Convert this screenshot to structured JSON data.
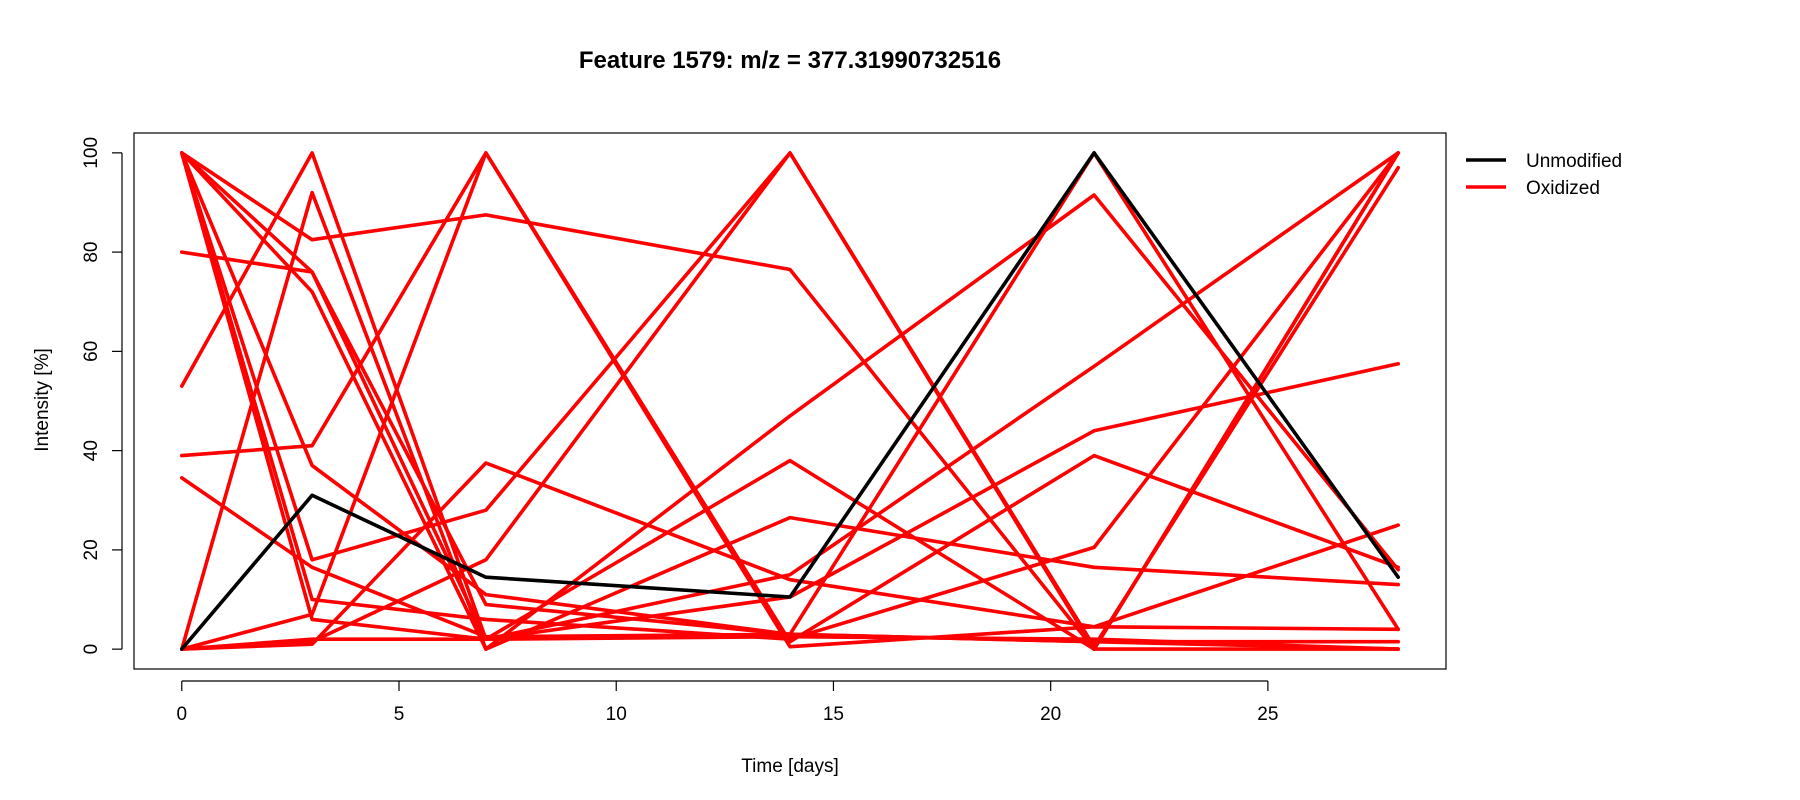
{
  "chart_data": {
    "type": "line",
    "title": "Feature 1579: m/z = 377.31990732516",
    "xlabel": "Time [days]",
    "ylabel": "Intensity [%]",
    "xlim": [
      -1.1,
      29.1
    ],
    "ylim": [
      -4,
      104
    ],
    "xticks": [
      0,
      5,
      10,
      15,
      20,
      25
    ],
    "yticks": [
      0,
      20,
      40,
      60,
      80,
      100
    ],
    "x": [
      0,
      3,
      7,
      14,
      21,
      28
    ],
    "grid": false,
    "legend": {
      "position": "top-right-outside",
      "entries": [
        {
          "label": "Unmodified",
          "color": "#000000"
        },
        {
          "label": "Oxidized",
          "color": "#ff0000"
        }
      ]
    },
    "groups": [
      {
        "label": "Unmodified",
        "color": "#000000",
        "series": [
          {
            "values": [
              0,
              31,
              14.5,
              10.5,
              100,
              14.5
            ]
          }
        ]
      },
      {
        "label": "Oxidized",
        "color": "#ff0000",
        "series": [
          {
            "values": [
              100,
              82.5,
              87.5,
              76.5,
              0,
              100
            ]
          },
          {
            "values": [
              100,
              76,
              2,
              2.5,
              2,
              0
            ]
          },
          {
            "values": [
              100,
              72,
              0,
              47,
              91.5,
              16
            ]
          },
          {
            "values": [
              80,
              76,
              9,
              3,
              1.5,
              0
            ]
          },
          {
            "values": [
              53,
              100,
              2,
              38,
              0,
              0
            ]
          },
          {
            "values": [
              39,
              41,
              100,
              0.5,
              4.5,
              4
            ]
          },
          {
            "values": [
              34.5,
              16.5,
              2.5,
              3,
              1.5,
              1.5
            ]
          },
          {
            "values": [
              100,
              37,
              11,
              3,
              100,
              4
            ]
          },
          {
            "values": [
              100,
              18,
              28,
              100,
              0,
              100
            ]
          },
          {
            "values": [
              0,
              7,
              100,
              1.5,
              39,
              16.5
            ]
          },
          {
            "values": [
              0,
              1.5,
              18,
              100,
              0.5,
              97
            ]
          },
          {
            "values": [
              0,
              92,
              0,
              26.5,
              16.5,
              13
            ]
          },
          {
            "values": [
              0,
              2,
              2,
              15,
              57,
              100
            ]
          },
          {
            "values": [
              100,
              6,
              2,
              10.5,
              44,
              57.5
            ]
          },
          {
            "values": [
              100,
              10,
              6,
              2,
              20.5,
              100
            ]
          },
          {
            "values": [
              0,
              1,
              37.5,
              14,
              4.5,
              25
            ]
          }
        ]
      }
    ]
  }
}
